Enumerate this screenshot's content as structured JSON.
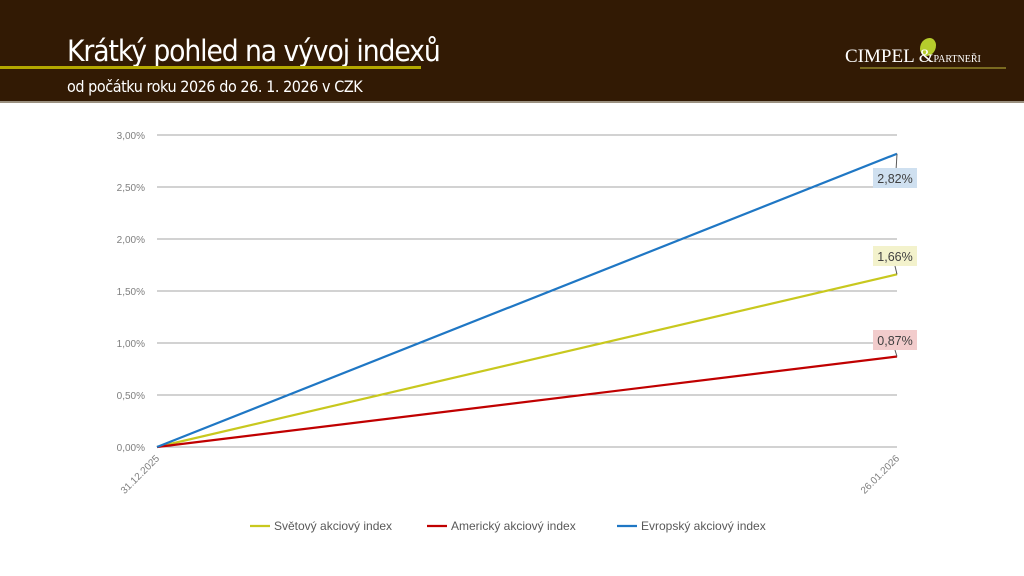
{
  "header": {
    "title": "Krátký pohled na vývoj indexů",
    "subtitle": "od počátku roku 2026 do 26. 1. 2026 v CZK",
    "logo_main": "CIMPEL",
    "logo_amp": "&",
    "logo_sub": "PARTNEŘI"
  },
  "chart_data": {
    "type": "line",
    "x": [
      "31.12.2025",
      "26.01.2026"
    ],
    "ylim": [
      0,
      3
    ],
    "yticks": [
      "0,00%",
      "0,50%",
      "1,00%",
      "1,50%",
      "2,00%",
      "2,50%",
      "3,00%"
    ],
    "grid": true,
    "legend_position": "bottom",
    "series": [
      {
        "name": "Světový akciový index",
        "values": [
          0,
          1.66
        ],
        "color": "#c8c81e",
        "label": "1,66%",
        "label_bg": "#f3f2cc"
      },
      {
        "name": "Americký akciový index",
        "values": [
          0,
          0.87
        ],
        "color": "#c00000",
        "label": "0,87%",
        "label_bg": "#f2cccc"
      },
      {
        "name": "Evropský akciový index",
        "values": [
          0,
          2.82
        ],
        "color": "#1f77c4",
        "label": "2,82%",
        "label_bg": "#cfe0f0"
      }
    ]
  }
}
